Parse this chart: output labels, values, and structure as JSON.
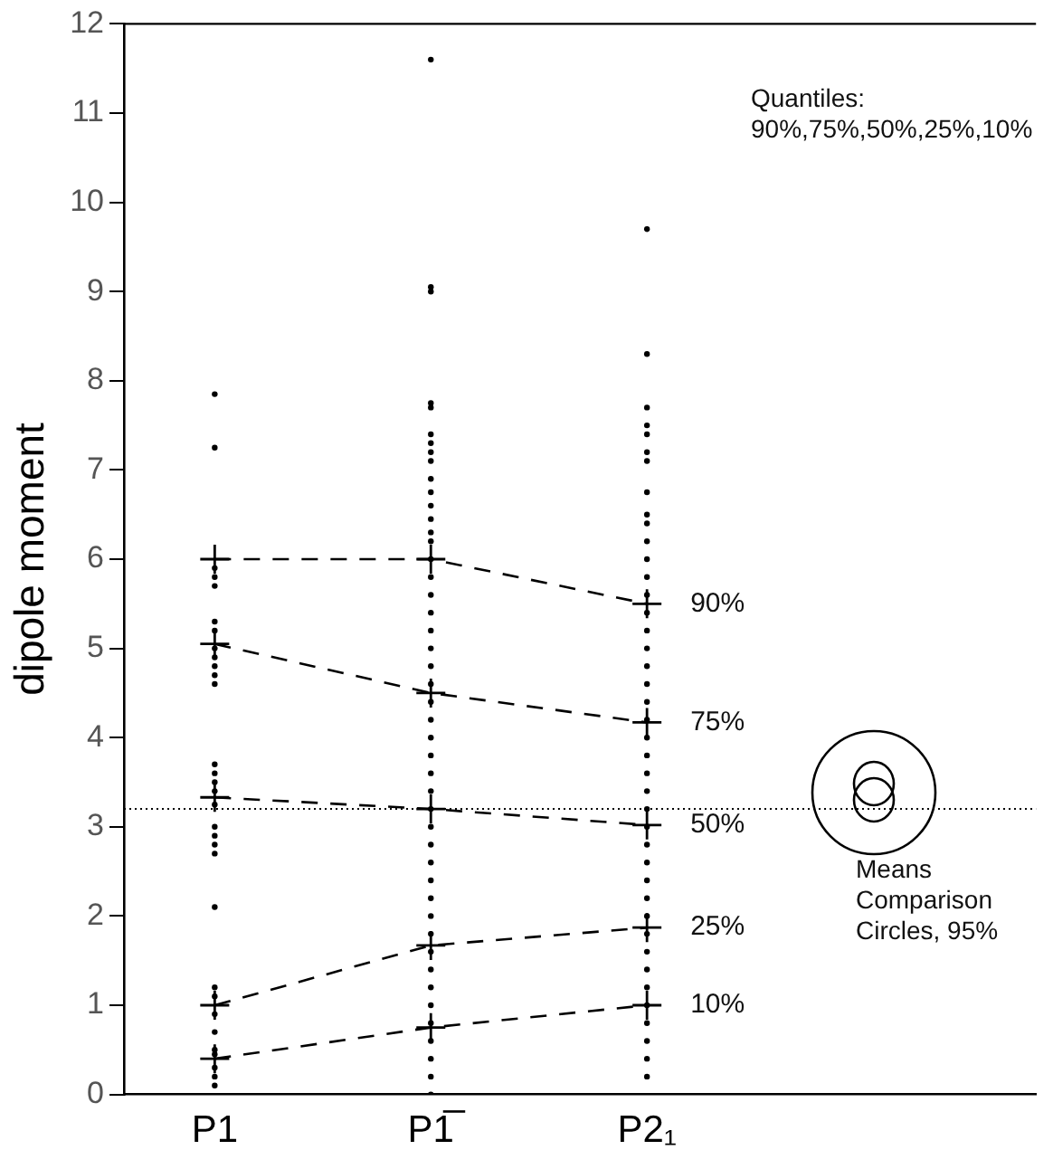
{
  "chart_data": {
    "type": "line",
    "ylabel": "dipole moment",
    "categories": [
      "P1",
      "P1̅",
      "P2₁"
    ],
    "ylim": [
      0,
      12
    ],
    "yticks": [
      0,
      1,
      2,
      3,
      4,
      5,
      6,
      7,
      8,
      9,
      10,
      11,
      12
    ],
    "line_style": "dashed",
    "marker": "cross",
    "legend": false,
    "series": [
      {
        "color": "#000000",
        "values": [
          6.0,
          6.0,
          5.5
        ]
      },
      {
        "color": "#000000",
        "values": [
          5.05,
          4.5,
          4.17
        ]
      },
      {
        "color": "#000000",
        "values": [
          3.33,
          3.2,
          3.02
        ]
      },
      {
        "color": "#000000",
        "values": [
          1.0,
          1.67,
          1.87
        ]
      },
      {
        "color": "#000000",
        "values": [
          0.4,
          0.75,
          1.0
        ]
      },
      {
        "type": "scatter",
        "color": "#000000",
        "marker": "circle",
        "x": [
          "P1",
          "P1",
          "P1",
          "P1",
          "P1",
          "P1",
          "P1",
          "P1",
          "P1",
          "P1",
          "P1",
          "P1",
          "P1",
          "P1",
          "P1",
          "P1",
          "P1",
          "P1",
          "P1",
          "P1",
          "P1",
          "P1",
          "P1",
          "P1",
          "P1",
          "P1",
          "P1",
          "P1",
          "P1",
          "P1",
          "P1",
          "P1̅",
          "P1̅",
          "P1̅",
          "P1̅",
          "P1̅",
          "P1̅",
          "P1̅",
          "P1̅",
          "P1̅",
          "P1̅",
          "P1̅",
          "P1̅",
          "P1̅",
          "P1̅",
          "P1̅",
          "P1̅",
          "P1̅",
          "P1̅",
          "P1̅",
          "P1̅",
          "P1̅",
          "P1̅",
          "P1̅",
          "P1̅",
          "P1̅",
          "P1̅",
          "P1̅",
          "P1̅",
          "P1̅",
          "P1̅",
          "P1̅",
          "P1̅",
          "P1̅",
          "P1̅",
          "P1̅",
          "P1̅",
          "P1̅",
          "P1̅",
          "P1̅",
          "P1̅",
          "P1̅",
          "P1̅",
          "P1̅",
          "P1̅",
          "P1̅",
          "P1̅",
          "P2₁",
          "P2₁",
          "P2₁",
          "P2₁",
          "P2₁",
          "P2₁",
          "P2₁",
          "P2₁",
          "P2₁",
          "P2₁",
          "P2₁",
          "P2₁",
          "P2₁",
          "P2₁",
          "P2₁",
          "P2₁",
          "P2₁",
          "P2₁",
          "P2₁",
          "P2₁",
          "P2₁",
          "P2₁",
          "P2₁",
          "P2₁",
          "P2₁",
          "P2₁",
          "P2₁",
          "P2₁",
          "P2₁",
          "P2₁",
          "P2₁",
          "P2₁",
          "P2₁",
          "P2₁",
          "P2₁",
          "P2₁",
          "P2₁",
          "P2₁",
          "P2₁",
          "P2₁",
          "P2₁"
        ],
        "values": [
          7.85,
          7.25,
          5.9,
          5.8,
          5.7,
          5.3,
          5.2,
          5.0,
          4.9,
          4.8,
          4.7,
          4.6,
          3.7,
          3.6,
          3.5,
          3.4,
          3.25,
          3.0,
          2.9,
          2.8,
          2.7,
          2.1,
          1.2,
          1.1,
          0.9,
          0.7,
          0.5,
          0.45,
          0.3,
          0.2,
          0.1,
          11.6,
          9.05,
          9.0,
          7.75,
          7.7,
          7.4,
          7.3,
          7.2,
          7.1,
          6.9,
          6.75,
          6.6,
          6.45,
          6.3,
          6.2,
          6.0,
          5.8,
          5.6,
          5.4,
          5.2,
          5.0,
          4.8,
          4.6,
          4.4,
          4.2,
          4.0,
          3.8,
          3.6,
          3.4,
          3.2,
          3.0,
          2.8,
          2.6,
          2.4,
          2.2,
          2.0,
          1.8,
          1.6,
          1.4,
          1.2,
          1.0,
          0.8,
          0.6,
          0.4,
          0.2,
          0.0,
          9.7,
          8.3,
          7.7,
          7.5,
          7.4,
          7.2,
          7.1,
          6.75,
          6.5,
          6.4,
          6.2,
          6.0,
          5.8,
          5.6,
          5.4,
          5.2,
          5.0,
          4.8,
          4.6,
          4.4,
          4.2,
          4.0,
          3.8,
          3.6,
          3.4,
          3.2,
          3.0,
          2.8,
          2.6,
          2.4,
          2.2,
          2.0,
          1.8,
          1.6,
          1.4,
          1.2,
          1.0,
          0.8,
          0.6,
          0.4,
          0.2
        ]
      }
    ],
    "ref_lines": [
      {
        "axis": "y",
        "value": 3.2,
        "line_style": "dotted",
        "color": "#000000"
      }
    ],
    "annotations": [
      "Quantiles:\n90%,75%,50%,25%,10%",
      {
        "text": "90%",
        "x": "P2₁",
        "y": 5.5
      },
      {
        "text": "75%",
        "x": "P2₁",
        "y": 4.17
      },
      {
        "text": "50%",
        "x": "P2₁",
        "y": 3.02
      },
      {
        "text": "25%",
        "x": "P2₁",
        "y": 1.87
      },
      {
        "text": "10%",
        "x": "P2₁",
        "y": 1.0
      },
      "Means\nComparison\nCircles, 95%"
    ]
  }
}
